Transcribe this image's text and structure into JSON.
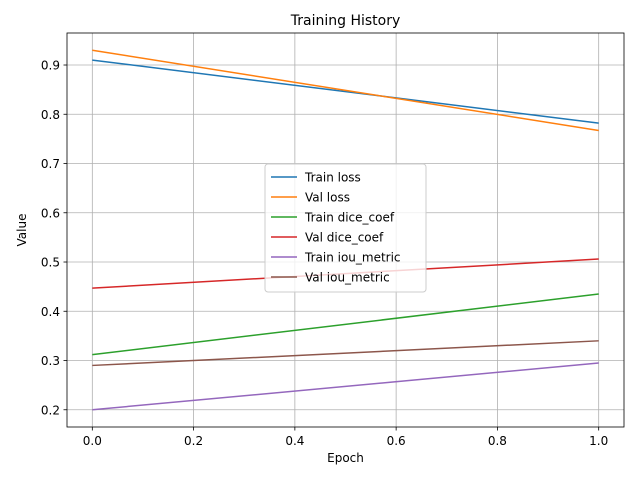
{
  "chart_data": {
    "type": "line",
    "title": "Training History",
    "xlabel": "Epoch",
    "ylabel": "Value",
    "xlim": [
      -0.05,
      1.05
    ],
    "ylim": [
      0.165,
      0.965
    ],
    "xticks": [
      "0.0",
      "0.2",
      "0.4",
      "0.6",
      "0.8",
      "1.0"
    ],
    "yticks": [
      "0.2",
      "0.3",
      "0.4",
      "0.5",
      "0.6",
      "0.7",
      "0.8",
      "0.9"
    ],
    "grid": true,
    "legend_position": "center",
    "x": [
      0,
      1
    ],
    "series": [
      {
        "name": "Train loss",
        "color": "#1f77b4",
        "values": [
          0.91,
          0.782
        ]
      },
      {
        "name": "Val loss",
        "color": "#ff7f0e",
        "values": [
          0.93,
          0.767
        ]
      },
      {
        "name": "Train dice_coef",
        "color": "#2ca02c",
        "values": [
          0.312,
          0.435
        ]
      },
      {
        "name": "Val dice_coef",
        "color": "#d62728",
        "values": [
          0.447,
          0.506
        ]
      },
      {
        "name": "Train iou_metric",
        "color": "#9467bd",
        "values": [
          0.2,
          0.295
        ]
      },
      {
        "name": "Val iou_metric",
        "color": "#8c564b",
        "values": [
          0.29,
          0.34
        ]
      }
    ]
  }
}
